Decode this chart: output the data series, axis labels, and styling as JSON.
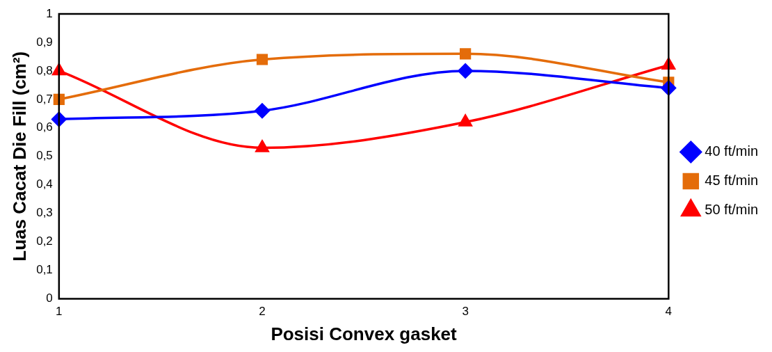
{
  "chart_data": {
    "type": "line",
    "xlabel": "Posisi Convex gasket",
    "ylabel": "Luas Cacat Die Fill (cm²)",
    "categories": [
      "1",
      "2",
      "3",
      "4"
    ],
    "series": [
      {
        "name": "40 ft/min",
        "color": "#0000ff",
        "marker": "diamond",
        "values": [
          0.63,
          0.66,
          0.8,
          0.74
        ]
      },
      {
        "name": "45 ft/min",
        "color": "#e46c0a",
        "marker": "square",
        "values": [
          0.7,
          0.84,
          0.86,
          0.76
        ]
      },
      {
        "name": "50 ft/min",
        "color": "#ff0000",
        "marker": "triangle",
        "values": [
          0.8,
          0.53,
          0.62,
          0.82
        ]
      }
    ],
    "ylim": [
      0,
      1
    ],
    "yticks": [
      0,
      {
        "value": 0.1,
        "label": "0,1"
      },
      {
        "value": 0.2,
        "label": "0,2"
      },
      {
        "value": 0.3,
        "label": "0,3"
      },
      {
        "value": 0.4,
        "label": "0,4"
      },
      {
        "value": 0.5,
        "label": "0,5"
      },
      {
        "value": 0.6,
        "label": "0,6"
      },
      {
        "value": 0.7,
        "label": "0,7"
      },
      {
        "value": 0.8,
        "label": "0,8"
      },
      {
        "value": 0.9,
        "label": "0,9"
      },
      1
    ],
    "grid": false,
    "legend": "right"
  }
}
